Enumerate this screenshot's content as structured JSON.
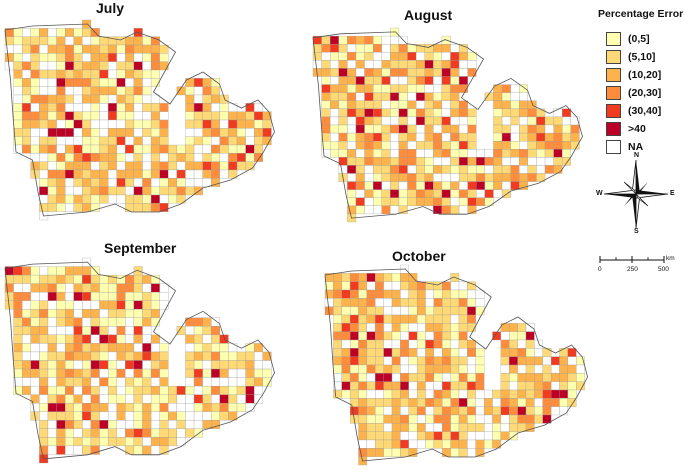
{
  "panels": [
    {
      "title": "July",
      "key": "jul"
    },
    {
      "title": "August",
      "key": "aug"
    },
    {
      "title": "September",
      "key": "sep"
    },
    {
      "title": "October",
      "key": "oct"
    }
  ],
  "legend": {
    "title": "Percentage Error",
    "items": [
      {
        "label": "(0,5]",
        "color": "#ffffb2"
      },
      {
        "label": "(5,10]",
        "color": "#fed976"
      },
      {
        "label": "(10,20]",
        "color": "#feb24c"
      },
      {
        "label": "(20,30]",
        "color": "#fd8d3c"
      },
      {
        "label": "(30,40]",
        "color": "#f03b20"
      },
      {
        "label": ">40",
        "color": "#bd0026"
      },
      {
        "label": "NA",
        "color": "#ffffff"
      }
    ]
  },
  "compass": {
    "n": "N",
    "s": "S",
    "e": "E",
    "w": "W"
  },
  "scale": {
    "ticks": [
      "0",
      "250",
      "500"
    ],
    "unit": "km"
  }
}
